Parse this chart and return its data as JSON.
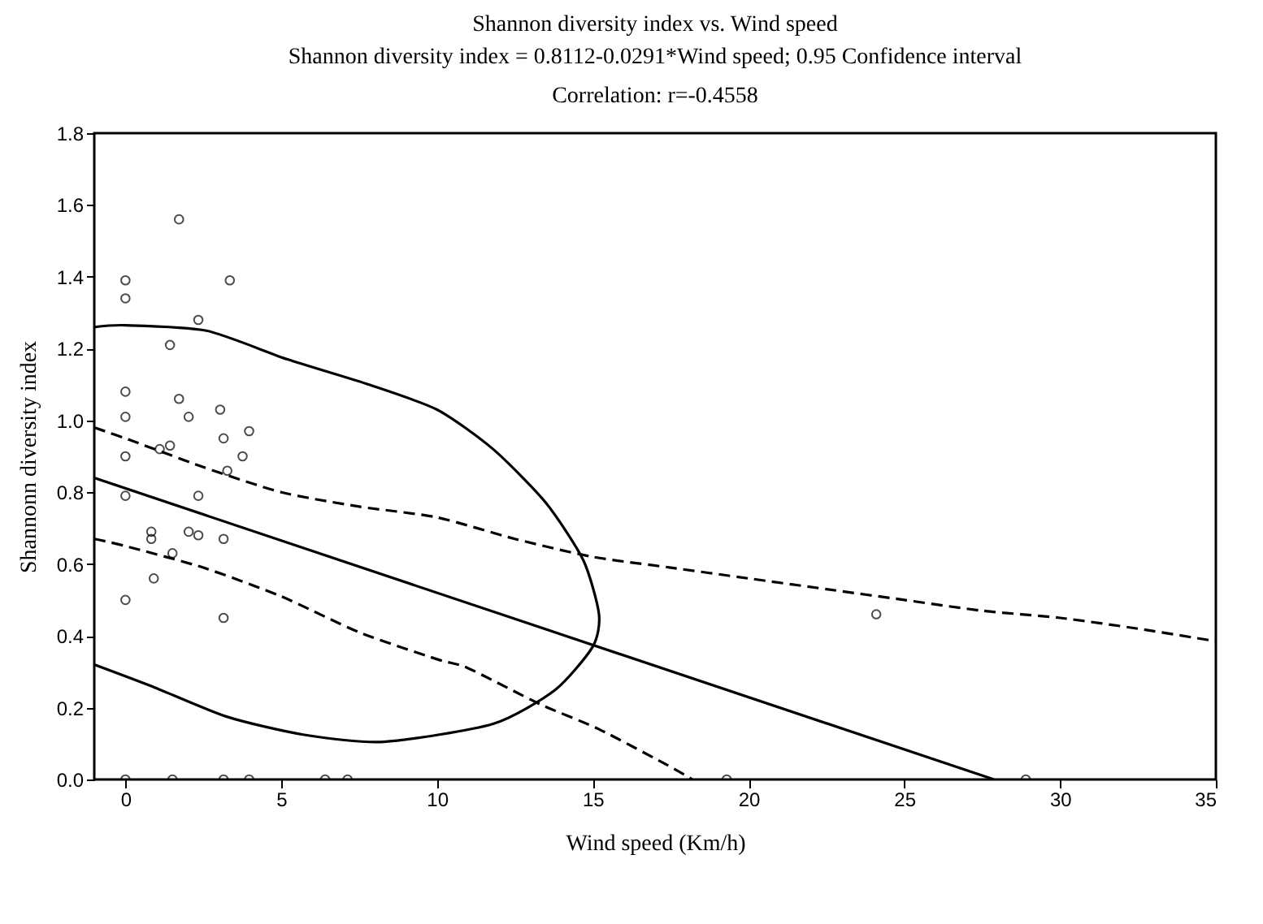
{
  "chart_data": {
    "type": "scatter",
    "title": "Shannon diversity index vs. Wind speed",
    "subtitle": "Shannon diversity index = 0.8112-0.0291*Wind speed; 0.95 Confidence interval",
    "annotations": [
      "Correlation: r=-0.4558"
    ],
    "xlabel": "Wind speed (Km/h)",
    "ylabel": "Shannonn diversity index",
    "xlim": [
      -1,
      35
    ],
    "xticks": [
      0,
      5,
      10,
      15,
      20,
      25,
      30,
      35
    ],
    "ylim": [
      0,
      1.8
    ],
    "yticks": [
      {
        "value": 0,
        "label": "0.0"
      },
      {
        "value": 0.2,
        "label": "0.2"
      },
      {
        "value": 0.4,
        "label": "0.4"
      },
      {
        "value": 0.6,
        "label": "0.6"
      },
      {
        "value": 0.8,
        "label": "0.8"
      },
      {
        "value": 1,
        "label": "1.0"
      },
      {
        "value": 1.2,
        "label": "1.2"
      },
      {
        "value": 1.4,
        "label": "1.4"
      },
      {
        "value": 1.6,
        "label": "1.6"
      },
      {
        "value": 1.8,
        "label": "1.8"
      }
    ],
    "grid": false,
    "series": [
      {
        "marker": "circle",
        "color": "#000000",
        "x": [
          0,
          0,
          1.72,
          3.35,
          2.34,
          1.43,
          0,
          0,
          1.72,
          2.03,
          3.04,
          3.15,
          3.97,
          3.76,
          0,
          1.1,
          1.43,
          3.27,
          0,
          2.34,
          0.83,
          0.83,
          2.03,
          2.34,
          3.15,
          1.51,
          0.91,
          0,
          3.15,
          0,
          1.51,
          3.15,
          3.97,
          6.41,
          7.13,
          19.3,
          28.9,
          24.1
        ],
        "values": [
          1.39,
          1.34,
          1.56,
          1.39,
          1.28,
          1.21,
          1.08,
          1.01,
          1.06,
          1.01,
          1.03,
          0.95,
          0.97,
          0.9,
          0.9,
          0.92,
          0.93,
          0.86,
          0.79,
          0.79,
          0.69,
          0.67,
          0.69,
          0.68,
          0.67,
          0.63,
          0.56,
          0.5,
          0.45,
          0,
          0,
          0,
          0,
          0,
          0,
          0,
          0,
          0.46
        ]
      },
      {
        "type": "line",
        "marker": "none",
        "line_style": "solid",
        "color": "#000000",
        "x": [
          -1,
          27.88
        ],
        "values": [
          0.84,
          0
        ]
      },
      {
        "type": "line",
        "marker": "none",
        "line_style": "dashed",
        "color": "#000000",
        "x": [
          -1,
          0,
          2.5,
          5,
          7.5,
          10,
          12.5,
          15,
          17.5,
          20,
          22.5,
          25,
          27.5,
          30,
          32.5,
          35
        ],
        "values": [
          0.98,
          0.95,
          0.87,
          0.8,
          0.76,
          0.73,
          0.67,
          0.62,
          0.59,
          0.56,
          0.53,
          0.5,
          0.47,
          0.45,
          0.42,
          0.385
        ]
      },
      {
        "type": "line",
        "marker": "none",
        "line_style": "dashed",
        "color": "#000000",
        "x": [
          -1,
          0,
          2.5,
          5,
          7.5,
          10,
          11,
          13.3,
          15.2,
          17.5,
          18.2
        ],
        "values": [
          0.67,
          0.65,
          0.59,
          0.51,
          0.41,
          0.335,
          0.31,
          0.21,
          0.14,
          0.035,
          0
        ]
      },
      {
        "type": "line",
        "marker": "none",
        "line_style": "solid",
        "color": "#000000",
        "x": [
          -1,
          0,
          2.6,
          5.2,
          7.8,
          10,
          11.8,
          13.5,
          14.7,
          15.2,
          15,
          13.8,
          11.8,
          8.3,
          5.7,
          3.25,
          0.83,
          -1
        ],
        "values": [
          1.26,
          1.265,
          1.25,
          1.17,
          1.1,
          1.03,
          0.92,
          0.77,
          0.61,
          0.46,
          0.37,
          0.25,
          0.155,
          0.105,
          0.125,
          0.175,
          0.26,
          0.32
        ]
      }
    ]
  }
}
